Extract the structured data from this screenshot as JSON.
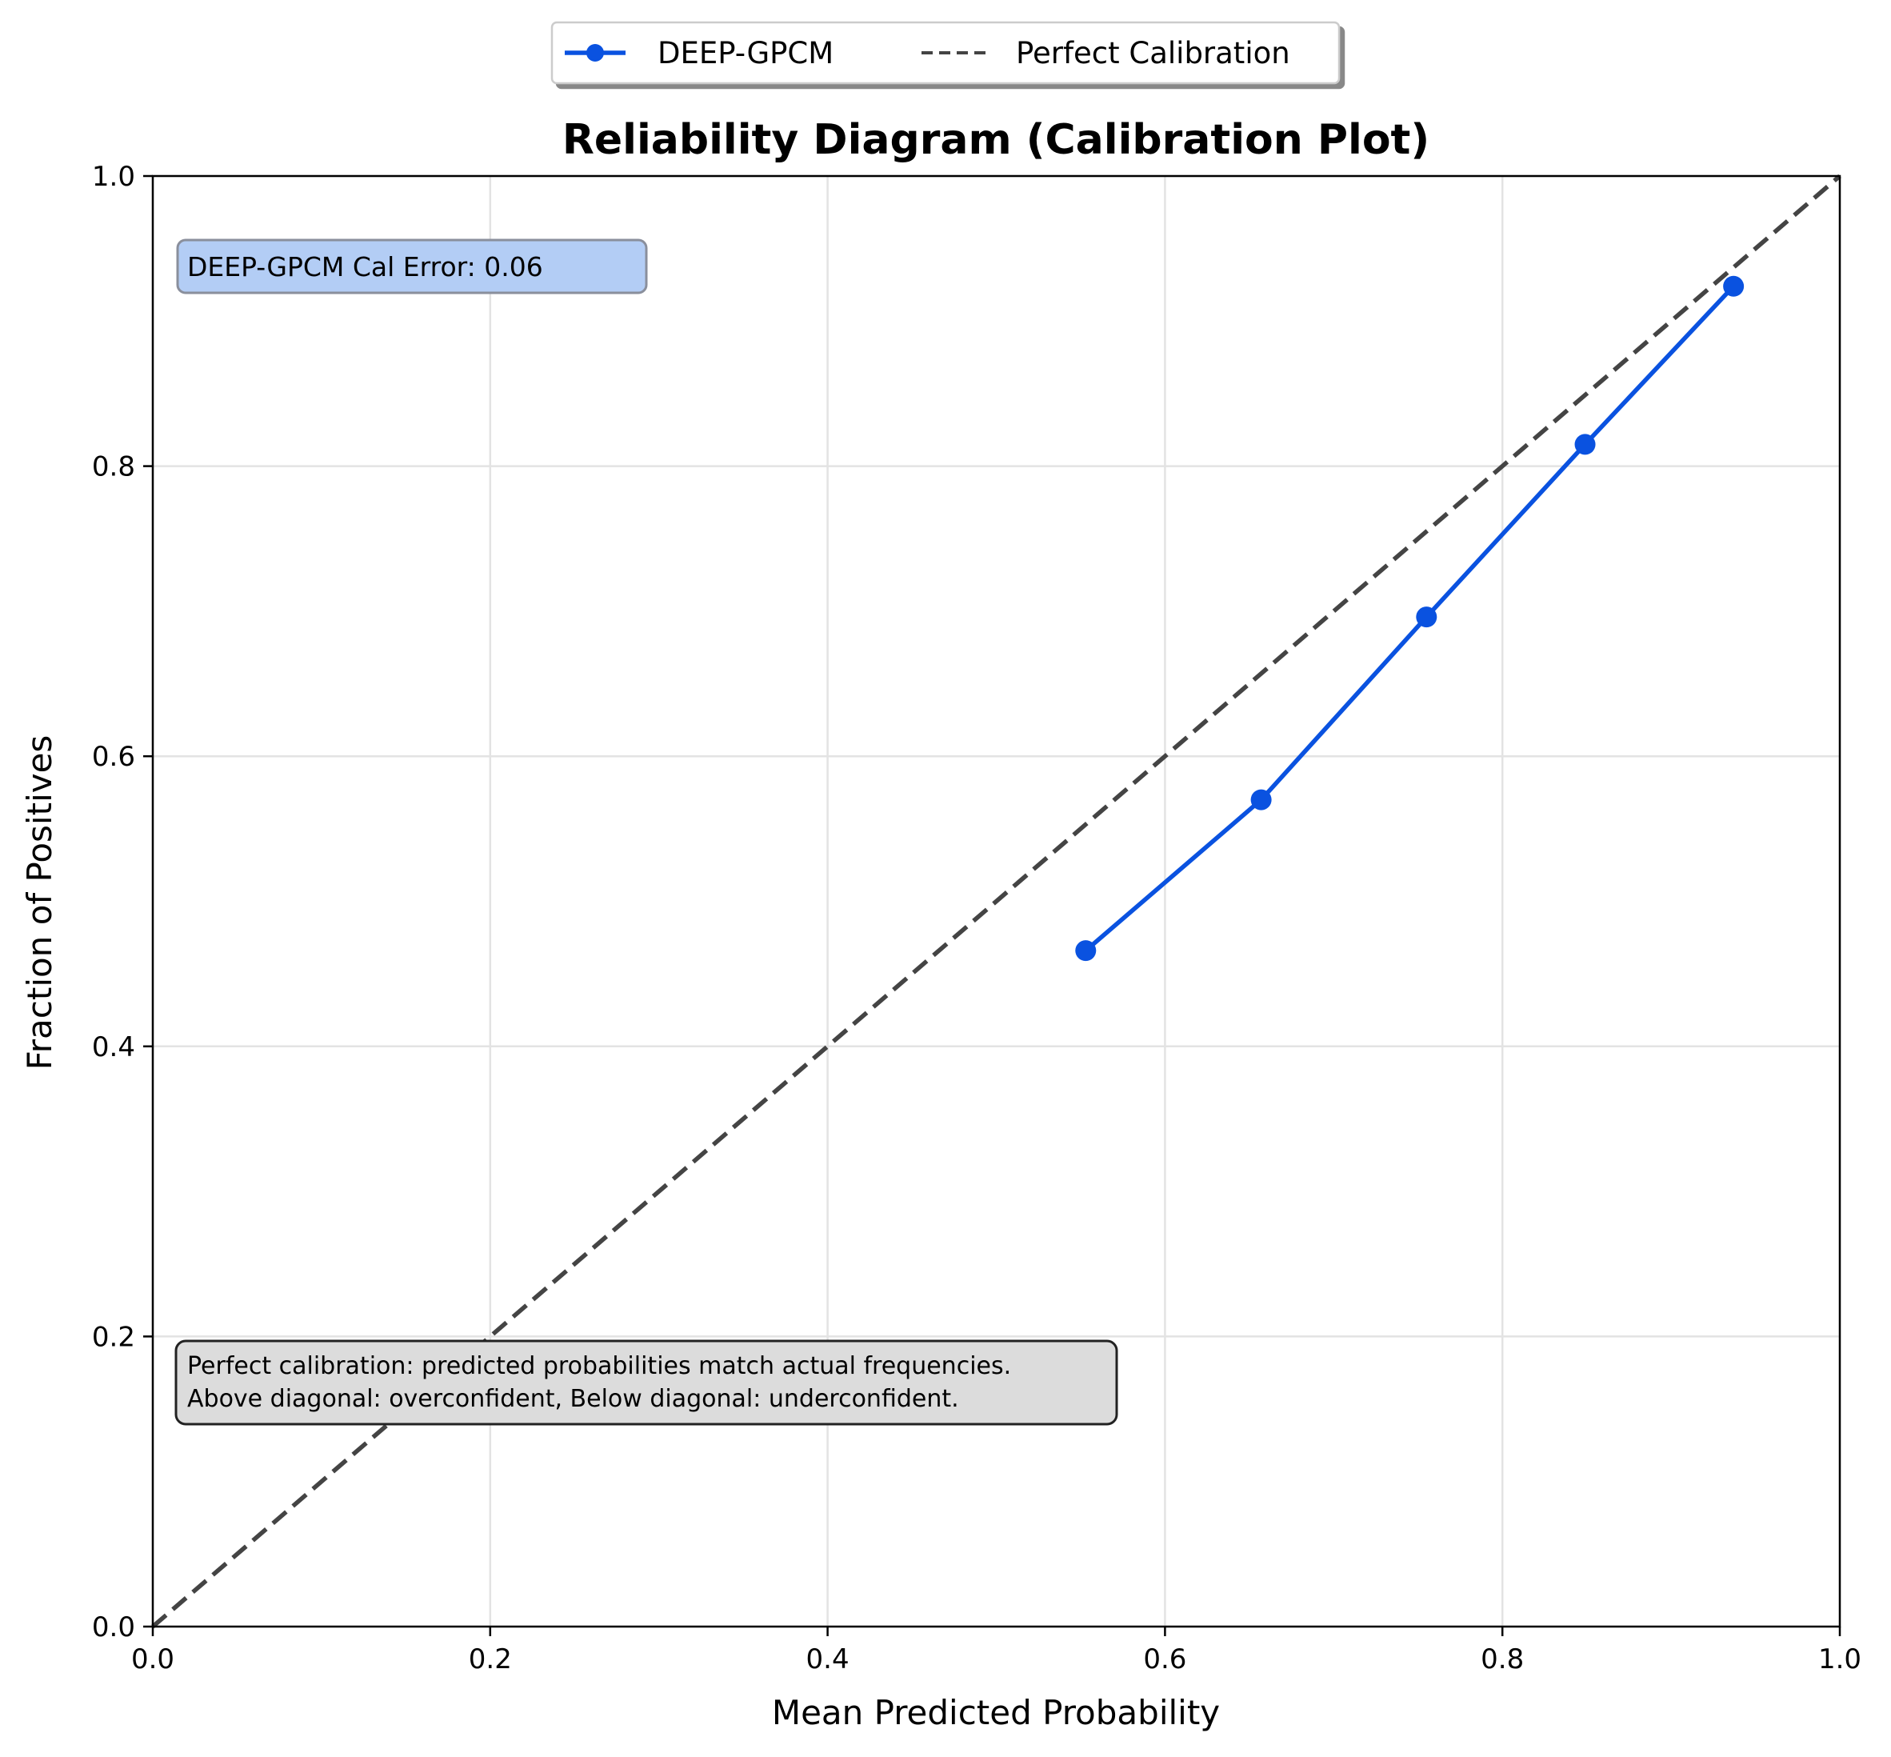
{
  "chart_data": {
    "type": "line",
    "title": "Reliability Diagram (Calibration Plot)",
    "xlabel": "Mean Predicted Probability",
    "ylabel": "Fraction of Positives",
    "xlim": [
      0.0,
      1.0
    ],
    "ylim": [
      0.0,
      1.0
    ],
    "x_ticks": [
      "0.0",
      "0.2",
      "0.4",
      "0.6",
      "0.8",
      "1.0"
    ],
    "y_ticks": [
      "0.0",
      "0.2",
      "0.4",
      "0.6",
      "0.8",
      "1.0"
    ],
    "grid": true,
    "legend_position": "top-center (outside, above title)",
    "series": [
      {
        "name": "DEEP-GPCM",
        "style": "solid line with circle markers",
        "color": "#0a52e0",
        "x": [
          0.553,
          0.657,
          0.755,
          0.849,
          0.937
        ],
        "y": [
          0.466,
          0.57,
          0.696,
          0.815,
          0.924
        ]
      },
      {
        "name": "Perfect Calibration",
        "style": "dashed",
        "color": "#444444",
        "x": [
          0.0,
          1.0
        ],
        "y": [
          0.0,
          1.0
        ]
      }
    ],
    "annotations": {
      "cal_error": "DEEP-GPCM Cal Error: 0.06",
      "note_line1": "Perfect calibration: predicted probabilities match actual frequencies.",
      "note_line2": "Above diagonal: overconfident, Below diagonal: underconfident."
    }
  }
}
